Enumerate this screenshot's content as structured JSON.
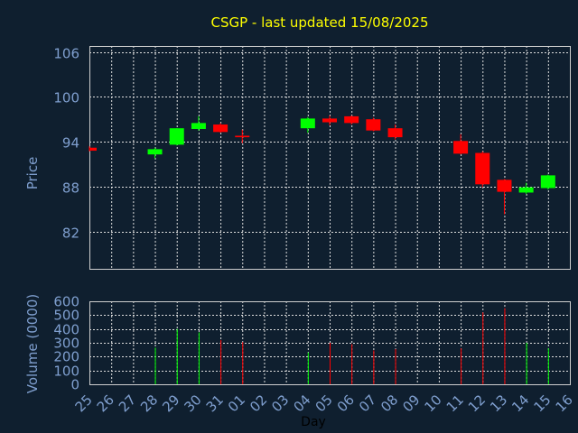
{
  "title": "CSGP - last updated 15/08/2025",
  "colors": {
    "background": "#0f1f2f",
    "title": "#ffff00",
    "axis_text": "#7f9fcf",
    "up": "#00ff00",
    "down": "#ff0000",
    "grid": "#dfdfdf"
  },
  "chart_data": {
    "type": "candlestick",
    "title": "CSGP - last updated 15/08/2025",
    "xlabel": "Day",
    "categories": [
      "25",
      "26",
      "27",
      "28",
      "29",
      "30",
      "31",
      "01",
      "02",
      "03",
      "04",
      "05",
      "06",
      "07",
      "08",
      "09",
      "10",
      "11",
      "12",
      "13",
      "14",
      "15",
      "16"
    ],
    "price_panel": {
      "ylabel": "Price",
      "ylim": [
        77,
        106.8
      ],
      "yticks": [
        82,
        88,
        94,
        100,
        106
      ],
      "grid": true,
      "candles": [
        {
          "day": "25",
          "open": 93.2,
          "high": 93.4,
          "low": 92.7,
          "close": 92.8
        },
        {
          "day": "28",
          "open": 92.3,
          "high": 93.2,
          "low": 91.8,
          "close": 93.0
        },
        {
          "day": "29",
          "open": 93.6,
          "high": 95.8,
          "low": 93.5,
          "close": 95.8
        },
        {
          "day": "30",
          "open": 95.7,
          "high": 97.4,
          "low": 95.5,
          "close": 96.5
        },
        {
          "day": "31",
          "open": 96.3,
          "high": 96.5,
          "low": 95.2,
          "close": 95.3
        },
        {
          "day": "01",
          "open": 94.8,
          "high": 95.6,
          "low": 93.8,
          "close": 94.6
        },
        {
          "day": "04",
          "open": 95.8,
          "high": 97.3,
          "low": 95.2,
          "close": 97.1
        },
        {
          "day": "05",
          "open": 97.1,
          "high": 97.5,
          "low": 96.2,
          "close": 96.6
        },
        {
          "day": "06",
          "open": 97.4,
          "high": 97.5,
          "low": 96.3,
          "close": 96.5
        },
        {
          "day": "07",
          "open": 97.0,
          "high": 97.2,
          "low": 95.4,
          "close": 95.5
        },
        {
          "day": "08",
          "open": 95.8,
          "high": 96.3,
          "low": 94.3,
          "close": 94.6
        },
        {
          "day": "11",
          "open": 94.1,
          "high": 95.0,
          "low": 92.3,
          "close": 92.4
        },
        {
          "day": "12",
          "open": 92.5,
          "high": 92.7,
          "low": 87.9,
          "close": 88.3
        },
        {
          "day": "13",
          "open": 88.9,
          "high": 89.0,
          "low": 84.3,
          "close": 87.3
        },
        {
          "day": "14",
          "open": 87.2,
          "high": 88.5,
          "low": 87.0,
          "close": 87.9
        },
        {
          "day": "15",
          "open": 87.8,
          "high": 89.6,
          "low": 87.6,
          "close": 89.5
        }
      ]
    },
    "volume_panel": {
      "ylabel": "Volume (0000)",
      "ylim": [
        0,
        600
      ],
      "yticks": [
        0,
        100,
        200,
        300,
        400,
        500,
        600
      ],
      "grid": true,
      "bars": [
        {
          "day": "28",
          "value": 265
        },
        {
          "day": "29",
          "value": 400
        },
        {
          "day": "30",
          "value": 375
        },
        {
          "day": "31",
          "value": 320
        },
        {
          "day": "01",
          "value": 305
        },
        {
          "day": "04",
          "value": 230
        },
        {
          "day": "05",
          "value": 300
        },
        {
          "day": "06",
          "value": 290
        },
        {
          "day": "07",
          "value": 245
        },
        {
          "day": "08",
          "value": 255
        },
        {
          "day": "11",
          "value": 260
        },
        {
          "day": "12",
          "value": 520
        },
        {
          "day": "13",
          "value": 550
        },
        {
          "day": "14",
          "value": 300
        },
        {
          "day": "15",
          "value": 260
        }
      ]
    }
  }
}
